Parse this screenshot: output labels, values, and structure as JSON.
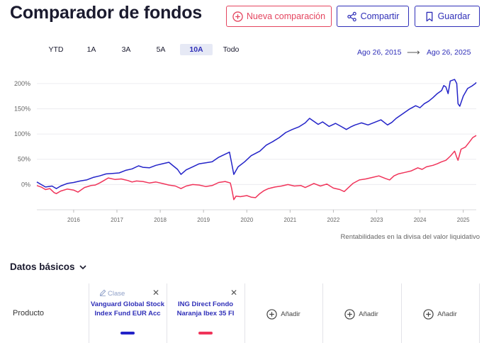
{
  "header": {
    "title": "Comparador de fondos",
    "new_label": "Nueva comparación",
    "share_label": "Compartir",
    "save_label": "Guardar"
  },
  "range_tabs": [
    "YTD",
    "1A",
    "3A",
    "5A",
    "10A",
    "Todo"
  ],
  "active_tab": "10A",
  "date_range": {
    "start": "Ago 26, 2015",
    "end": "Ago 26, 2025"
  },
  "colors": {
    "series_blue": "#2323c8",
    "series_red": "#f0345a",
    "accent": "#2f2fb8",
    "new_button": "#e4455f"
  },
  "chart_data": {
    "type": "line",
    "x_ticks": [
      "2016",
      "2017",
      "2018",
      "2019",
      "2020",
      "2021",
      "2022",
      "2023",
      "2024",
      "2025"
    ],
    "y_ticks": [
      "0%",
      "50%",
      "100%",
      "150%",
      "200%"
    ],
    "ylim": [
      -50,
      225
    ],
    "grid": true,
    "series": [
      {
        "name": "Vanguard Global Stock Index Fund EUR Acc",
        "color": "#2323c8",
        "points": [
          [
            2015.65,
            5
          ],
          [
            2015.75,
            0
          ],
          [
            2015.85,
            -5
          ],
          [
            2016.0,
            -3
          ],
          [
            2016.1,
            -8
          ],
          [
            2016.2,
            -3
          ],
          [
            2016.35,
            2
          ],
          [
            2016.5,
            4
          ],
          [
            2016.65,
            7
          ],
          [
            2016.8,
            9
          ],
          [
            2016.95,
            14
          ],
          [
            2017.1,
            17
          ],
          [
            2017.25,
            21
          ],
          [
            2017.4,
            22
          ],
          [
            2017.55,
            23
          ],
          [
            2017.7,
            28
          ],
          [
            2017.85,
            31
          ],
          [
            2018.0,
            37
          ],
          [
            2018.1,
            34
          ],
          [
            2018.25,
            33
          ],
          [
            2018.4,
            38
          ],
          [
            2018.55,
            41
          ],
          [
            2018.7,
            44
          ],
          [
            2018.8,
            37
          ],
          [
            2018.9,
            30
          ],
          [
            2018.98,
            20
          ],
          [
            2019.1,
            29
          ],
          [
            2019.25,
            35
          ],
          [
            2019.4,
            41
          ],
          [
            2019.55,
            43
          ],
          [
            2019.7,
            45
          ],
          [
            2019.85,
            54
          ],
          [
            2020.0,
            60
          ],
          [
            2020.1,
            64
          ],
          [
            2020.15,
            42
          ],
          [
            2020.2,
            20
          ],
          [
            2020.3,
            35
          ],
          [
            2020.45,
            45
          ],
          [
            2020.6,
            57
          ],
          [
            2020.8,
            66
          ],
          [
            2020.95,
            78
          ],
          [
            2021.1,
            85
          ],
          [
            2021.25,
            93
          ],
          [
            2021.4,
            103
          ],
          [
            2021.55,
            109
          ],
          [
            2021.7,
            114
          ],
          [
            2021.85,
            122
          ],
          [
            2021.95,
            131
          ],
          [
            2022.05,
            125
          ],
          [
            2022.15,
            119
          ],
          [
            2022.25,
            124
          ],
          [
            2022.4,
            115
          ],
          [
            2022.55,
            121
          ],
          [
            2022.7,
            114
          ],
          [
            2022.8,
            109
          ],
          [
            2022.9,
            114
          ],
          [
            2023.0,
            118
          ],
          [
            2023.15,
            122
          ],
          [
            2023.3,
            118
          ],
          [
            2023.45,
            123
          ],
          [
            2023.6,
            128
          ],
          [
            2023.75,
            118
          ],
          [
            2023.85,
            123
          ],
          [
            2023.95,
            131
          ],
          [
            2024.1,
            140
          ],
          [
            2024.25,
            149
          ],
          [
            2024.4,
            156
          ],
          [
            2024.5,
            152
          ],
          [
            2024.6,
            160
          ],
          [
            2024.7,
            165
          ],
          [
            2024.8,
            172
          ],
          [
            2024.9,
            180
          ],
          [
            2025.0,
            186
          ],
          [
            2025.05,
            196
          ],
          [
            2025.1,
            193
          ],
          [
            2025.15,
            180
          ],
          [
            2025.2,
            205
          ],
          [
            2025.3,
            208
          ],
          [
            2025.35,
            200
          ],
          [
            2025.38,
            160
          ],
          [
            2025.42,
            155
          ],
          [
            2025.5,
            175
          ],
          [
            2025.6,
            190
          ],
          [
            2025.7,
            195
          ],
          [
            2025.78,
            200
          ],
          [
            2025.8,
            202
          ]
        ]
      },
      {
        "name": "ING Direct Fondo Naranja Ibex 35 FI",
        "color": "#f0345a",
        "points": [
          [
            2015.65,
            -2
          ],
          [
            2015.75,
            -5
          ],
          [
            2015.85,
            -10
          ],
          [
            2015.95,
            -8
          ],
          [
            2016.05,
            -16
          ],
          [
            2016.1,
            -18
          ],
          [
            2016.2,
            -13
          ],
          [
            2016.35,
            -9
          ],
          [
            2016.5,
            -11
          ],
          [
            2016.6,
            -15
          ],
          [
            2016.75,
            -6
          ],
          [
            2016.9,
            -2
          ],
          [
            2017.0,
            -1
          ],
          [
            2017.1,
            3
          ],
          [
            2017.2,
            8
          ],
          [
            2017.3,
            13
          ],
          [
            2017.45,
            10
          ],
          [
            2017.6,
            11
          ],
          [
            2017.75,
            8
          ],
          [
            2017.85,
            5
          ],
          [
            2017.95,
            7
          ],
          [
            2018.1,
            6
          ],
          [
            2018.25,
            3
          ],
          [
            2018.4,
            5
          ],
          [
            2018.55,
            2
          ],
          [
            2018.7,
            -1
          ],
          [
            2018.85,
            -3
          ],
          [
            2018.98,
            -8
          ],
          [
            2019.1,
            -3
          ],
          [
            2019.25,
            0
          ],
          [
            2019.4,
            -1
          ],
          [
            2019.55,
            -4
          ],
          [
            2019.7,
            -2
          ],
          [
            2019.85,
            4
          ],
          [
            2020.0,
            6
          ],
          [
            2020.12,
            3
          ],
          [
            2020.15,
            -8
          ],
          [
            2020.2,
            -30
          ],
          [
            2020.25,
            -23
          ],
          [
            2020.35,
            -24
          ],
          [
            2020.5,
            -22
          ],
          [
            2020.6,
            -25
          ],
          [
            2020.7,
            -26
          ],
          [
            2020.8,
            -18
          ],
          [
            2020.9,
            -12
          ],
          [
            2021.0,
            -8
          ],
          [
            2021.15,
            -5
          ],
          [
            2021.3,
            -3
          ],
          [
            2021.45,
            0
          ],
          [
            2021.6,
            -3
          ],
          [
            2021.75,
            -2
          ],
          [
            2021.85,
            -6
          ],
          [
            2021.95,
            -2
          ],
          [
            2022.05,
            2
          ],
          [
            2022.2,
            -3
          ],
          [
            2022.35,
            1
          ],
          [
            2022.5,
            -7
          ],
          [
            2022.65,
            -10
          ],
          [
            2022.75,
            -14
          ],
          [
            2022.85,
            -6
          ],
          [
            2022.95,
            2
          ],
          [
            2023.1,
            9
          ],
          [
            2023.25,
            11
          ],
          [
            2023.4,
            14
          ],
          [
            2023.55,
            17
          ],
          [
            2023.7,
            12
          ],
          [
            2023.8,
            9
          ],
          [
            2023.9,
            17
          ],
          [
            2024.0,
            21
          ],
          [
            2024.15,
            24
          ],
          [
            2024.3,
            27
          ],
          [
            2024.45,
            33
          ],
          [
            2024.55,
            30
          ],
          [
            2024.65,
            35
          ],
          [
            2024.8,
            38
          ],
          [
            2024.9,
            41
          ],
          [
            2025.0,
            45
          ],
          [
            2025.1,
            48
          ],
          [
            2025.2,
            56
          ],
          [
            2025.3,
            66
          ],
          [
            2025.35,
            54
          ],
          [
            2025.38,
            48
          ],
          [
            2025.45,
            70
          ],
          [
            2025.55,
            74
          ],
          [
            2025.65,
            85
          ],
          [
            2025.72,
            93
          ],
          [
            2025.8,
            97
          ]
        ]
      }
    ]
  },
  "chart_note": "Rentabilidades en la divisa del valor liquidativo",
  "basics": {
    "title": "Datos básicos",
    "row_label": "Producto",
    "class_label": "Clase",
    "funds": [
      {
        "name": "Vanguard Global Stock Index Fund EUR Acc",
        "color": "#2323c8"
      },
      {
        "name": "ING Direct Fondo Naranja Ibex 35 FI",
        "color": "#f0345a"
      }
    ],
    "add_label": "Añadir",
    "close_glyph": "✕"
  }
}
